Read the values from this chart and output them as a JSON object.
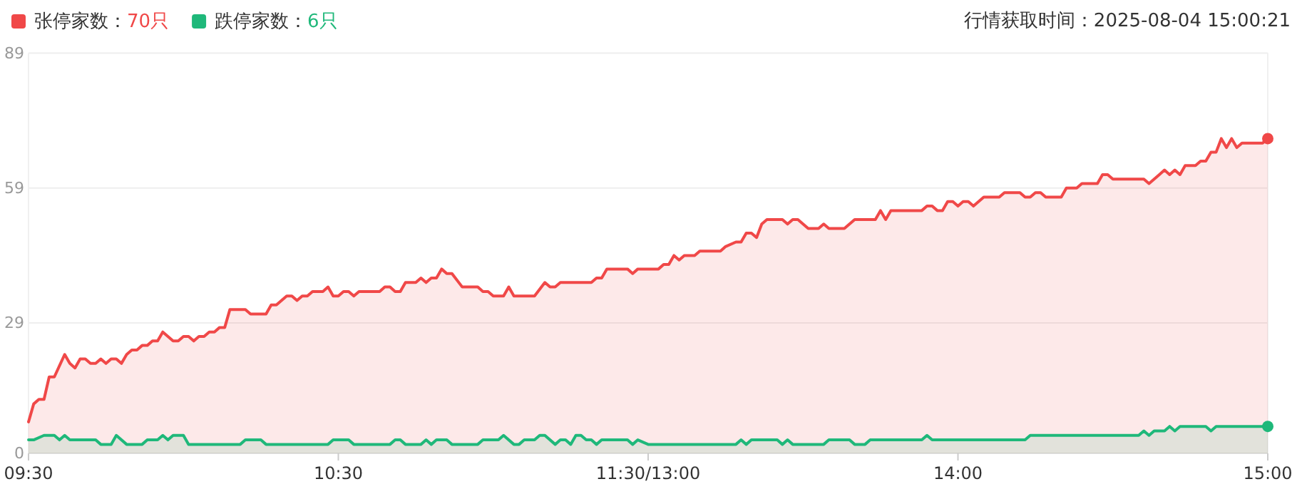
{
  "chart_data": {
    "type": "area",
    "subtitle": "行情获取时间：2025-08-04 15:00:21",
    "categories": [
      "09:30",
      null,
      null,
      null,
      null,
      null,
      null,
      null,
      null,
      null,
      null,
      null,
      null,
      null,
      null,
      null,
      null,
      null,
      null,
      null,
      null,
      null,
      null,
      null,
      null,
      null,
      null,
      null,
      null,
      null,
      null,
      null,
      null,
      null,
      null,
      null,
      null,
      null,
      null,
      null,
      null,
      null,
      null,
      null,
      null,
      null,
      null,
      null,
      null,
      null,
      null,
      null,
      null,
      null,
      null,
      null,
      null,
      null,
      null,
      null,
      "10:30",
      null,
      null,
      null,
      null,
      null,
      null,
      null,
      null,
      null,
      null,
      null,
      null,
      null,
      null,
      null,
      null,
      null,
      null,
      null,
      null,
      null,
      null,
      null,
      null,
      null,
      null,
      null,
      null,
      null,
      null,
      null,
      null,
      null,
      null,
      null,
      null,
      null,
      null,
      null,
      null,
      null,
      null,
      null,
      null,
      null,
      null,
      null,
      null,
      null,
      null,
      null,
      null,
      null,
      null,
      null,
      null,
      null,
      null,
      null,
      "11:30/13:00",
      null,
      null,
      null,
      null,
      null,
      null,
      null,
      null,
      null,
      null,
      null,
      null,
      null,
      null,
      null,
      null,
      null,
      null,
      null,
      null,
      null,
      null,
      null,
      null,
      null,
      null,
      null,
      null,
      null,
      null,
      null,
      null,
      null,
      null,
      null,
      null,
      null,
      null,
      null,
      null,
      null,
      null,
      null,
      null,
      null,
      null,
      null,
      null,
      null,
      null,
      null,
      null,
      null,
      null,
      null,
      null,
      null,
      null,
      null,
      "14:00",
      null,
      null,
      null,
      null,
      null,
      null,
      null,
      null,
      null,
      null,
      null,
      null,
      null,
      null,
      null,
      null,
      null,
      null,
      null,
      null,
      null,
      null,
      null,
      null,
      null,
      null,
      null,
      null,
      null,
      null,
      null,
      null,
      null,
      null,
      null,
      null,
      null,
      null,
      null,
      null,
      null,
      null,
      null,
      null,
      null,
      null,
      null,
      null,
      null,
      null,
      null,
      null,
      null,
      null,
      null,
      null,
      null,
      null,
      null,
      "15:00"
    ],
    "ylim": [
      0,
      89
    ],
    "yticks": [
      0,
      29,
      59,
      89
    ],
    "grid": "y",
    "legend": "top left",
    "line_style": "solid",
    "series": [
      {
        "name": "张停家数：70只",
        "color": "#f04848",
        "values": [
          7,
          11,
          12,
          12,
          17,
          17,
          null,
          22,
          20,
          19,
          21,
          21,
          20,
          20,
          21,
          20,
          21,
          21,
          20,
          22,
          23,
          23,
          24,
          24,
          25,
          25,
          27,
          26,
          25,
          25,
          26,
          26,
          25,
          26,
          26,
          27,
          27,
          28,
          28,
          32,
          32,
          32,
          32,
          31,
          31,
          31,
          31,
          33,
          33,
          null,
          35,
          35,
          34,
          35,
          35,
          36,
          36,
          36,
          37,
          35,
          35,
          36,
          36,
          35,
          36,
          36,
          36,
          36,
          36,
          37,
          37,
          36,
          36,
          38,
          38,
          38,
          39,
          38,
          39,
          39,
          41,
          40,
          40,
          null,
          37,
          37,
          37,
          37,
          36,
          36,
          35,
          35,
          35,
          37,
          35,
          35,
          35,
          35,
          35,
          null,
          38,
          37,
          37,
          38,
          38,
          38,
          38,
          38,
          38,
          38,
          39,
          39,
          41,
          41,
          41,
          41,
          41,
          40,
          41,
          41,
          41,
          41,
          41,
          42,
          42,
          44,
          43,
          44,
          44,
          44,
          45,
          45,
          45,
          45,
          45,
          46,
          null,
          47,
          47,
          49,
          49,
          48,
          51,
          52,
          52,
          52,
          52,
          51,
          52,
          52,
          null,
          50,
          50,
          50,
          51,
          50,
          50,
          50,
          50,
          null,
          52,
          52,
          52,
          52,
          52,
          54,
          52,
          54,
          54,
          54,
          54,
          54,
          54,
          54,
          55,
          55,
          54,
          54,
          56,
          56,
          55,
          56,
          56,
          55,
          null,
          57,
          57,
          57,
          57,
          58,
          58,
          58,
          58,
          57,
          57,
          58,
          58,
          57,
          57,
          57,
          57,
          59,
          59,
          59,
          60,
          60,
          60,
          60,
          62,
          62,
          61,
          61,
          61,
          61,
          61,
          61,
          61,
          60,
          null,
          62,
          63,
          62,
          63,
          62,
          64,
          64,
          64,
          65,
          65,
          67,
          67,
          70,
          68,
          70,
          68,
          69,
          69,
          69,
          69,
          69,
          70
        ]
      },
      {
        "name": "跌停家数：6只",
        "color": "#1fb87a",
        "values": [
          3,
          3,
          null,
          4,
          4,
          4,
          3,
          4,
          3,
          3,
          3,
          3,
          3,
          3,
          2,
          2,
          2,
          4,
          null,
          2,
          2,
          2,
          2,
          3,
          3,
          3,
          4,
          3,
          4,
          4,
          4,
          2,
          2,
          2,
          2,
          2,
          2,
          2,
          2,
          2,
          2,
          2,
          3,
          3,
          3,
          3,
          2,
          2,
          2,
          2,
          2,
          2,
          2,
          2,
          2,
          2,
          2,
          2,
          2,
          3,
          3,
          3,
          3,
          2,
          2,
          2,
          2,
          2,
          2,
          2,
          2,
          3,
          3,
          2,
          2,
          2,
          2,
          3,
          2,
          3,
          3,
          3,
          2,
          2,
          2,
          2,
          2,
          2,
          3,
          3,
          3,
          3,
          4,
          null,
          2,
          2,
          3,
          3,
          3,
          4,
          4,
          null,
          2,
          3,
          3,
          2,
          4,
          4,
          3,
          3,
          2,
          3,
          3,
          3,
          3,
          3,
          3,
          2,
          3,
          null,
          2,
          2,
          2,
          2,
          2,
          2,
          2,
          2,
          2,
          2,
          2,
          2,
          2,
          2,
          2,
          2,
          2,
          2,
          3,
          2,
          3,
          3,
          3,
          3,
          3,
          3,
          2,
          3,
          2,
          2,
          2,
          2,
          2,
          2,
          2,
          3,
          3,
          3,
          3,
          3,
          2,
          2,
          2,
          3,
          3,
          3,
          3,
          3,
          3,
          3,
          3,
          3,
          3,
          3,
          4,
          3,
          3,
          3,
          3,
          3,
          3,
          3,
          3,
          3,
          3,
          3,
          3,
          3,
          3,
          3,
          3,
          3,
          3,
          3,
          4,
          4,
          4,
          4,
          4,
          4,
          4,
          4,
          4,
          4,
          4,
          4,
          4,
          4,
          4,
          4,
          4,
          4,
          4,
          4,
          4,
          4,
          5,
          4,
          5,
          5,
          5,
          6,
          5,
          6,
          6,
          6,
          6,
          6,
          6,
          5,
          6,
          6,
          6,
          6,
          6,
          6,
          6,
          6,
          6,
          6,
          6
        ]
      }
    ]
  }
}
